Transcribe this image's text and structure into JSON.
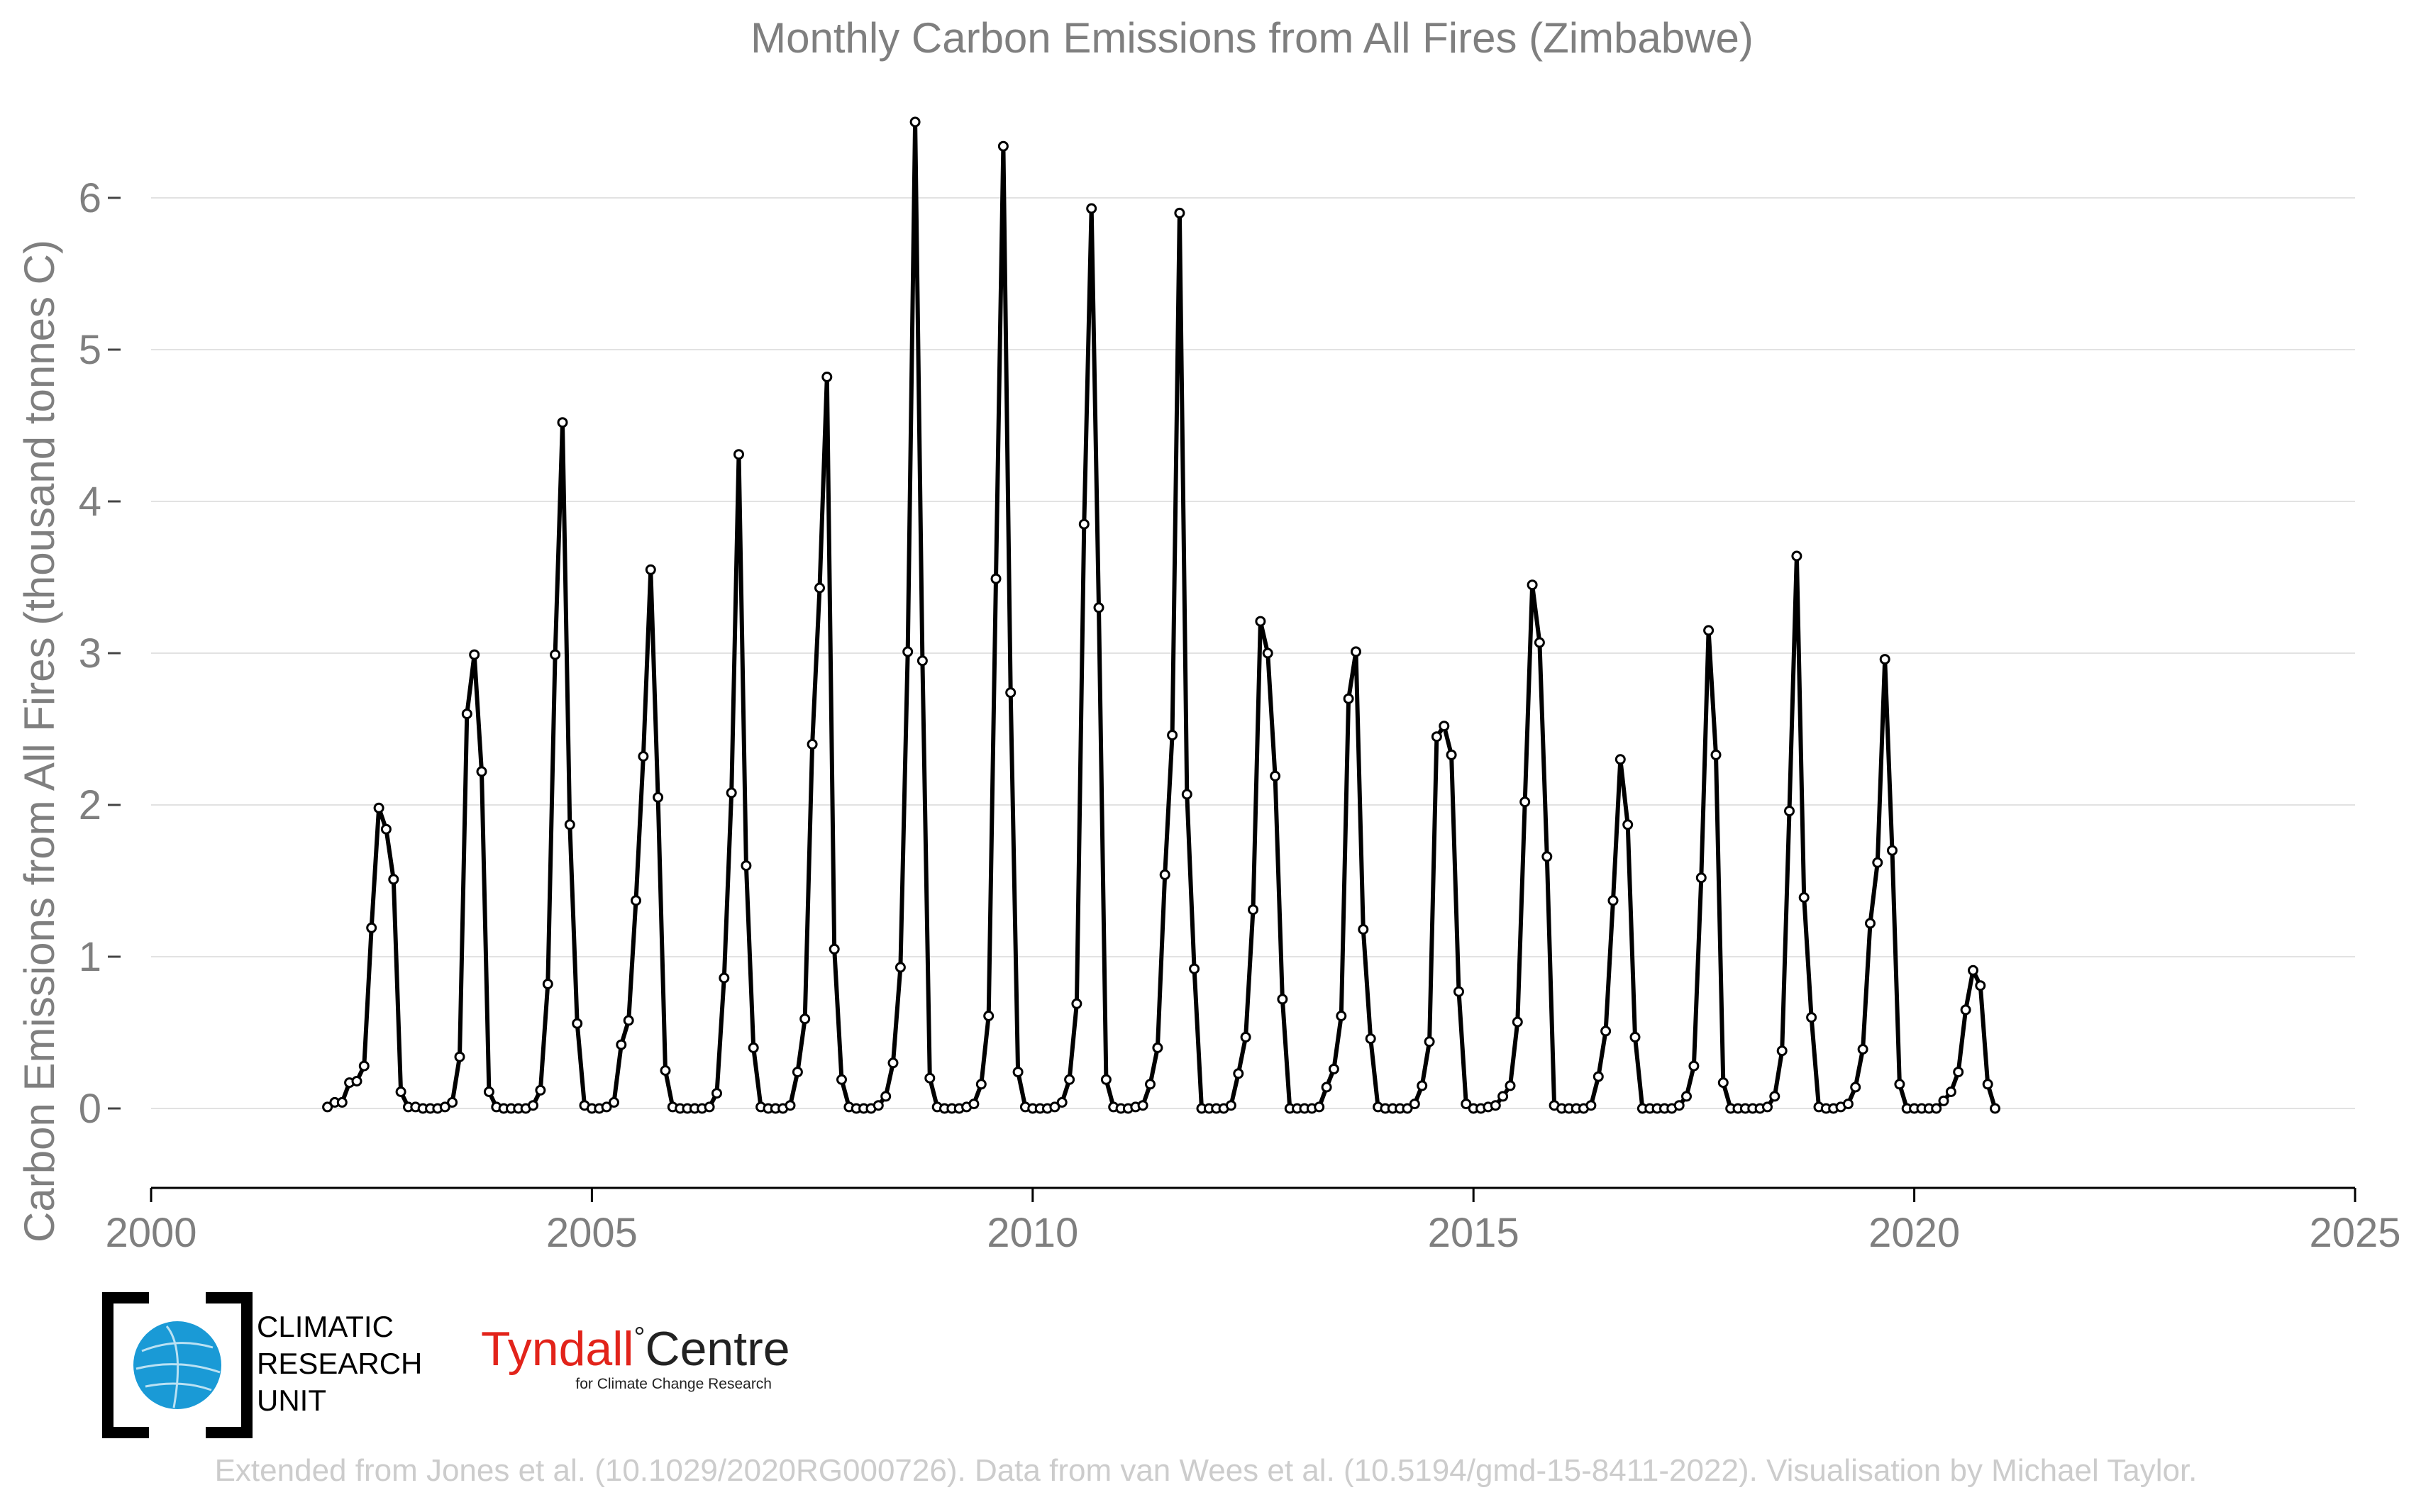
{
  "chart_data": {
    "type": "line",
    "title": "Monthly Carbon Emissions from All Fires (Zimbabwe)",
    "xlabel": "",
    "ylabel": "Carbon Emissions from All Fires (thousand tonnes C)",
    "xlim": [
      2000,
      2025
    ],
    "ylim": [
      -0.5,
      6.6
    ],
    "x_ticks": [
      "2000",
      "2005",
      "2010",
      "2015",
      "2020",
      "2025"
    ],
    "y_ticks": [
      "0",
      "1",
      "2",
      "3",
      "4",
      "5",
      "6"
    ],
    "grid": "horizontal",
    "line_color": "#000000",
    "x_start": 2002.0,
    "x_step": 0.0833333,
    "series": [
      {
        "values": [
          0.01,
          0.04,
          0.04,
          0.17,
          0.18,
          0.28,
          1.19,
          1.98,
          1.84,
          1.51,
          0.11,
          0.01,
          0.01,
          0.0,
          0.0,
          0.0,
          0.01,
          0.04,
          0.34,
          2.6,
          2.99,
          2.22,
          0.11,
          0.01,
          0.0,
          0.0,
          0.0,
          0.0,
          0.02,
          0.12,
          0.82,
          2.99,
          4.52,
          1.87,
          0.56,
          0.02,
          0.0,
          0.0,
          0.01,
          0.04,
          0.42,
          0.58,
          1.37,
          2.32,
          3.55,
          2.05,
          0.25,
          0.01,
          0.0,
          0.0,
          0.0,
          0.0,
          0.01,
          0.1,
          0.86,
          2.08,
          4.31,
          1.6,
          0.4,
          0.01,
          0.0,
          0.0,
          0.0,
          0.02,
          0.24,
          0.59,
          2.4,
          3.43,
          4.82,
          1.05,
          0.19,
          0.01,
          0.0,
          0.0,
          0.0,
          0.02,
          0.08,
          0.3,
          0.93,
          3.01,
          6.5,
          2.95,
          0.2,
          0.01,
          0.0,
          0.0,
          0.0,
          0.01,
          0.03,
          0.16,
          0.61,
          3.49,
          6.34,
          2.74,
          0.24,
          0.01,
          0.0,
          0.0,
          0.0,
          0.01,
          0.04,
          0.19,
          0.69,
          3.85,
          5.93,
          3.3,
          0.19,
          0.01,
          0.0,
          0.0,
          0.01,
          0.02,
          0.16,
          0.4,
          1.54,
          2.46,
          5.9,
          2.07,
          0.92,
          0.0,
          0.0,
          0.0,
          0.0,
          0.02,
          0.23,
          0.47,
          1.31,
          3.21,
          3.0,
          2.19,
          0.72,
          0.0,
          0.0,
          0.0,
          0.0,
          0.01,
          0.14,
          0.26,
          0.61,
          2.7,
          3.01,
          1.18,
          0.46,
          0.01,
          0.0,
          0.0,
          0.0,
          0.0,
          0.03,
          0.15,
          0.44,
          2.45,
          2.52,
          2.33,
          0.77,
          0.03,
          0.0,
          0.0,
          0.01,
          0.02,
          0.08,
          0.15,
          0.57,
          2.02,
          3.45,
          3.07,
          1.66,
          0.02,
          0.0,
          0.0,
          0.0,
          0.0,
          0.02,
          0.21,
          0.51,
          1.37,
          2.3,
          1.87,
          0.47,
          0.0,
          0.0,
          0.0,
          0.0,
          0.0,
          0.02,
          0.08,
          0.28,
          1.52,
          3.15,
          2.33,
          0.17,
          0.0,
          0.0,
          0.0,
          0.0,
          0.0,
          0.01,
          0.08,
          0.38,
          1.96,
          3.64,
          1.39,
          0.6,
          0.01,
          0.0,
          0.0,
          0.01,
          0.03,
          0.14,
          0.39,
          1.22,
          1.62,
          2.96,
          1.7,
          0.16,
          0.0,
          0.0,
          0.0,
          0.0,
          0.0,
          0.05,
          0.11,
          0.24,
          0.65,
          0.91,
          0.81,
          0.16,
          0.0
        ]
      }
    ]
  },
  "credit": "Extended from Jones et al. (10.1029/2020RG000726). Data from van Wees et al. (10.5194/gmd-15-8411-2022). Visualisation by Michael Taylor.",
  "logos": {
    "cru_lines": [
      "CLIMATIC",
      "RESEARCH",
      "UNIT"
    ],
    "tyndall_name": "Tyndall",
    "tyndall_degree": "°",
    "tyndall_centre": "Centre",
    "tyndall_sub": "for Climate Change Research",
    "cru_color": "#1a9ad6",
    "tyndall_red": "#e2231a"
  }
}
